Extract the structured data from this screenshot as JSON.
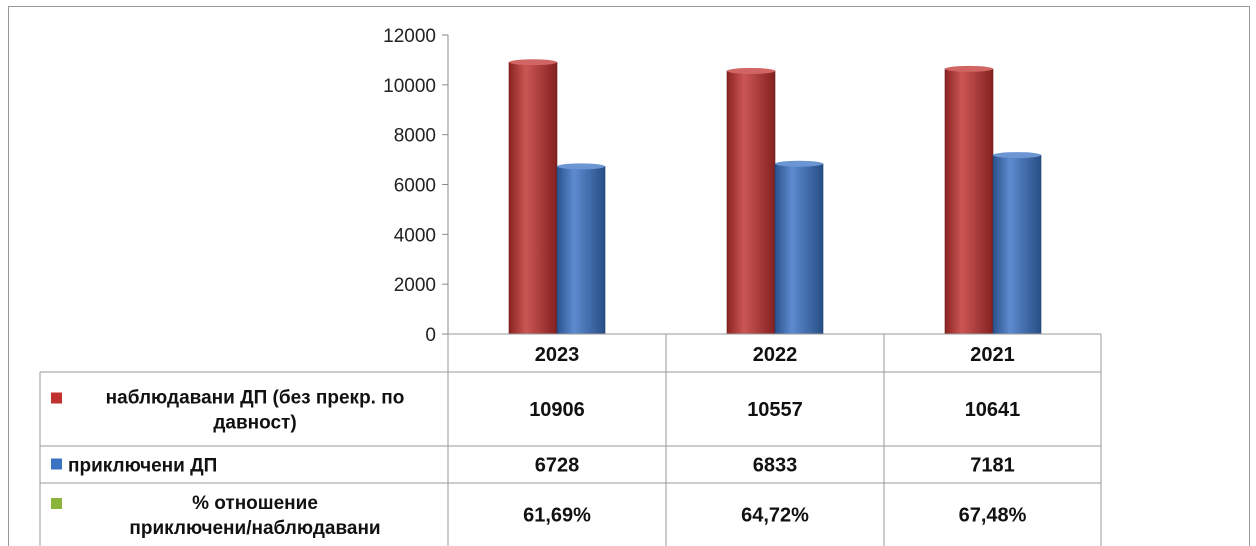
{
  "chart_data": {
    "type": "bar",
    "categories": [
      "2023",
      "2022",
      "2021"
    ],
    "ylim": [
      0,
      12000
    ],
    "yticks": [
      "0",
      "2000",
      "4000",
      "6000",
      "8000",
      "10000",
      "12000"
    ],
    "series": [
      {
        "name_lines": [
          "наблюдавани ДП (без прекр. по",
          "давност)"
        ],
        "values": [
          10906,
          10557,
          10641
        ],
        "labels": [
          "10906",
          "10557",
          "10641"
        ],
        "color": "#c0312f",
        "bar": true
      },
      {
        "name_lines": [
          "приключени ДП"
        ],
        "values": [
          6728,
          6833,
          7181
        ],
        "labels": [
          "6728",
          "6833",
          "7181"
        ],
        "color": "#3a72c4",
        "bar": true
      },
      {
        "name_lines": [
          "% отношение",
          "приключени/наблюдавани"
        ],
        "values": [
          61.69,
          64.72,
          67.48
        ],
        "labels": [
          "61,69%",
          "64,72%",
          "67,48%"
        ],
        "color": "#8ab43a",
        "bar": false
      }
    ]
  }
}
